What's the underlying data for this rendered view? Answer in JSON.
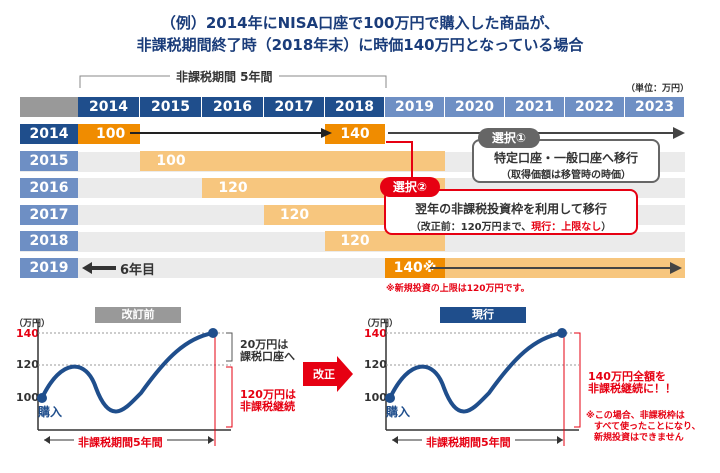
{
  "title": {
    "line1": "（例）2014年にNISA口座で100万円で購入した商品が、",
    "line2": "非課税期間終了時（2018年末）に時価140万円となっている場合"
  },
  "period_bracket_label": "非課税期間 5年間",
  "unit_label": "（単位：万円）",
  "header_years": [
    "2014",
    "2015",
    "2016",
    "2017",
    "2018",
    "2019",
    "2020",
    "2021",
    "2022",
    "2023"
  ],
  "row_labels": [
    "2014",
    "2015",
    "2016",
    "2017",
    "2018",
    "2019"
  ],
  "cells": {
    "r2014_start": "100",
    "r2014_end": "140",
    "r2015": "100",
    "r2016": "120",
    "r2017": "120",
    "r2018": "120",
    "r2019": "140※"
  },
  "six_years_label": "6年目",
  "choice1": {
    "badge": "選択①",
    "line1": "特定口座・一般口座へ移行",
    "line2": "（取得価額は移管時の時価）"
  },
  "choice2": {
    "badge": "選択②",
    "line1": "翌年の非課税投資枠を利用して移行",
    "line2_a": "（改正前：120万円まで、",
    "line2_b": "現行：上限なし",
    "line2_c": "）"
  },
  "new_invest_note": "※新規投資の上限は120万円です。",
  "chart_before": {
    "tab": "改訂前",
    "unit": "（万円）",
    "y140": "140",
    "y120": "120",
    "y100": "100",
    "buy": "購入",
    "ann1_l1": "20万円は",
    "ann1_l2": "課税口座へ",
    "ann2_l1": "120万円は",
    "ann2_l2": "非課税継続",
    "period": "非課税期間5年間"
  },
  "revision_arrow": "改正",
  "chart_after": {
    "tab": "現行",
    "unit": "（万円）",
    "y140": "140",
    "y120": "120",
    "y100": "100",
    "buy": "購入",
    "ann1_l1": "140万円全額を",
    "ann1_l2": "非課税継続に！！",
    "ann2_l1": "※この場合、非課税枠は",
    "ann2_l2": "すべて使ったことになり、",
    "ann2_l3": "新規投資はできません",
    "period": "非課税期間5年間"
  },
  "colors": {
    "navy": "#1f4e8c",
    "lightblue": "#6e8fc4",
    "orange": "#f08c00",
    "lightorange": "#f7c67e",
    "red": "#e60012"
  }
}
